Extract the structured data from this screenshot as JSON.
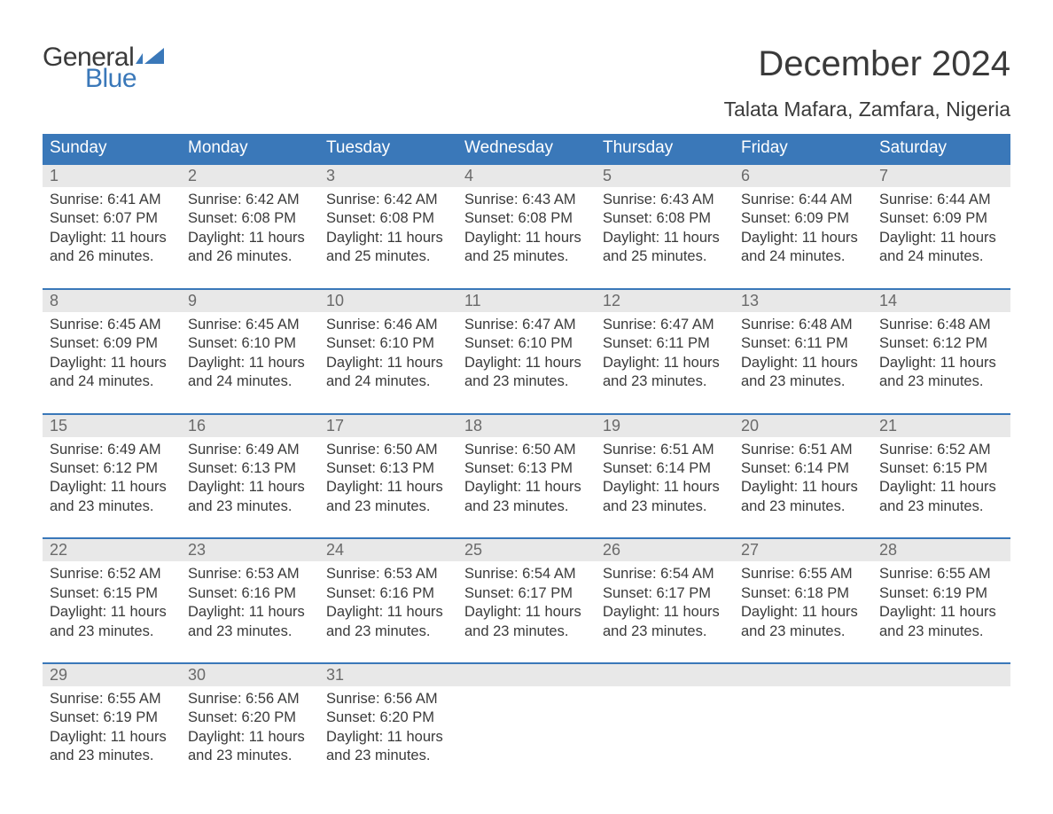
{
  "brand": {
    "word1": "General",
    "word2": "Blue",
    "accent_color": "#3a78b9"
  },
  "title": "December 2024",
  "subtitle": "Talata Mafara, Zamfara, Nigeria",
  "colors": {
    "header_bg": "#3a78b9",
    "header_text": "#ffffff",
    "daynum_bg": "#e8e8e8",
    "daynum_text": "#6a6a6a",
    "body_text": "#3a3a3a",
    "page_bg": "#ffffff",
    "week_border": "#3a78b9"
  },
  "typography": {
    "title_size_pt": 30,
    "subtitle_size_pt": 17,
    "header_size_pt": 14,
    "body_size_pt": 12
  },
  "day_headers": [
    "Sunday",
    "Monday",
    "Tuesday",
    "Wednesday",
    "Thursday",
    "Friday",
    "Saturday"
  ],
  "weeks": [
    [
      {
        "n": "1",
        "sunrise": "Sunrise: 6:41 AM",
        "sunset": "Sunset: 6:07 PM",
        "d1": "Daylight: 11 hours",
        "d2": "and 26 minutes."
      },
      {
        "n": "2",
        "sunrise": "Sunrise: 6:42 AM",
        "sunset": "Sunset: 6:08 PM",
        "d1": "Daylight: 11 hours",
        "d2": "and 26 minutes."
      },
      {
        "n": "3",
        "sunrise": "Sunrise: 6:42 AM",
        "sunset": "Sunset: 6:08 PM",
        "d1": "Daylight: 11 hours",
        "d2": "and 25 minutes."
      },
      {
        "n": "4",
        "sunrise": "Sunrise: 6:43 AM",
        "sunset": "Sunset: 6:08 PM",
        "d1": "Daylight: 11 hours",
        "d2": "and 25 minutes."
      },
      {
        "n": "5",
        "sunrise": "Sunrise: 6:43 AM",
        "sunset": "Sunset: 6:08 PM",
        "d1": "Daylight: 11 hours",
        "d2": "and 25 minutes."
      },
      {
        "n": "6",
        "sunrise": "Sunrise: 6:44 AM",
        "sunset": "Sunset: 6:09 PM",
        "d1": "Daylight: 11 hours",
        "d2": "and 24 minutes."
      },
      {
        "n": "7",
        "sunrise": "Sunrise: 6:44 AM",
        "sunset": "Sunset: 6:09 PM",
        "d1": "Daylight: 11 hours",
        "d2": "and 24 minutes."
      }
    ],
    [
      {
        "n": "8",
        "sunrise": "Sunrise: 6:45 AM",
        "sunset": "Sunset: 6:09 PM",
        "d1": "Daylight: 11 hours",
        "d2": "and 24 minutes."
      },
      {
        "n": "9",
        "sunrise": "Sunrise: 6:45 AM",
        "sunset": "Sunset: 6:10 PM",
        "d1": "Daylight: 11 hours",
        "d2": "and 24 minutes."
      },
      {
        "n": "10",
        "sunrise": "Sunrise: 6:46 AM",
        "sunset": "Sunset: 6:10 PM",
        "d1": "Daylight: 11 hours",
        "d2": "and 24 minutes."
      },
      {
        "n": "11",
        "sunrise": "Sunrise: 6:47 AM",
        "sunset": "Sunset: 6:10 PM",
        "d1": "Daylight: 11 hours",
        "d2": "and 23 minutes."
      },
      {
        "n": "12",
        "sunrise": "Sunrise: 6:47 AM",
        "sunset": "Sunset: 6:11 PM",
        "d1": "Daylight: 11 hours",
        "d2": "and 23 minutes."
      },
      {
        "n": "13",
        "sunrise": "Sunrise: 6:48 AM",
        "sunset": "Sunset: 6:11 PM",
        "d1": "Daylight: 11 hours",
        "d2": "and 23 minutes."
      },
      {
        "n": "14",
        "sunrise": "Sunrise: 6:48 AM",
        "sunset": "Sunset: 6:12 PM",
        "d1": "Daylight: 11 hours",
        "d2": "and 23 minutes."
      }
    ],
    [
      {
        "n": "15",
        "sunrise": "Sunrise: 6:49 AM",
        "sunset": "Sunset: 6:12 PM",
        "d1": "Daylight: 11 hours",
        "d2": "and 23 minutes."
      },
      {
        "n": "16",
        "sunrise": "Sunrise: 6:49 AM",
        "sunset": "Sunset: 6:13 PM",
        "d1": "Daylight: 11 hours",
        "d2": "and 23 minutes."
      },
      {
        "n": "17",
        "sunrise": "Sunrise: 6:50 AM",
        "sunset": "Sunset: 6:13 PM",
        "d1": "Daylight: 11 hours",
        "d2": "and 23 minutes."
      },
      {
        "n": "18",
        "sunrise": "Sunrise: 6:50 AM",
        "sunset": "Sunset: 6:13 PM",
        "d1": "Daylight: 11 hours",
        "d2": "and 23 minutes."
      },
      {
        "n": "19",
        "sunrise": "Sunrise: 6:51 AM",
        "sunset": "Sunset: 6:14 PM",
        "d1": "Daylight: 11 hours",
        "d2": "and 23 minutes."
      },
      {
        "n": "20",
        "sunrise": "Sunrise: 6:51 AM",
        "sunset": "Sunset: 6:14 PM",
        "d1": "Daylight: 11 hours",
        "d2": "and 23 minutes."
      },
      {
        "n": "21",
        "sunrise": "Sunrise: 6:52 AM",
        "sunset": "Sunset: 6:15 PM",
        "d1": "Daylight: 11 hours",
        "d2": "and 23 minutes."
      }
    ],
    [
      {
        "n": "22",
        "sunrise": "Sunrise: 6:52 AM",
        "sunset": "Sunset: 6:15 PM",
        "d1": "Daylight: 11 hours",
        "d2": "and 23 minutes."
      },
      {
        "n": "23",
        "sunrise": "Sunrise: 6:53 AM",
        "sunset": "Sunset: 6:16 PM",
        "d1": "Daylight: 11 hours",
        "d2": "and 23 minutes."
      },
      {
        "n": "24",
        "sunrise": "Sunrise: 6:53 AM",
        "sunset": "Sunset: 6:16 PM",
        "d1": "Daylight: 11 hours",
        "d2": "and 23 minutes."
      },
      {
        "n": "25",
        "sunrise": "Sunrise: 6:54 AM",
        "sunset": "Sunset: 6:17 PM",
        "d1": "Daylight: 11 hours",
        "d2": "and 23 minutes."
      },
      {
        "n": "26",
        "sunrise": "Sunrise: 6:54 AM",
        "sunset": "Sunset: 6:17 PM",
        "d1": "Daylight: 11 hours",
        "d2": "and 23 minutes."
      },
      {
        "n": "27",
        "sunrise": "Sunrise: 6:55 AM",
        "sunset": "Sunset: 6:18 PM",
        "d1": "Daylight: 11 hours",
        "d2": "and 23 minutes."
      },
      {
        "n": "28",
        "sunrise": "Sunrise: 6:55 AM",
        "sunset": "Sunset: 6:19 PM",
        "d1": "Daylight: 11 hours",
        "d2": "and 23 minutes."
      }
    ],
    [
      {
        "n": "29",
        "sunrise": "Sunrise: 6:55 AM",
        "sunset": "Sunset: 6:19 PM",
        "d1": "Daylight: 11 hours",
        "d2": "and 23 minutes."
      },
      {
        "n": "30",
        "sunrise": "Sunrise: 6:56 AM",
        "sunset": "Sunset: 6:20 PM",
        "d1": "Daylight: 11 hours",
        "d2": "and 23 minutes."
      },
      {
        "n": "31",
        "sunrise": "Sunrise: 6:56 AM",
        "sunset": "Sunset: 6:20 PM",
        "d1": "Daylight: 11 hours",
        "d2": "and 23 minutes."
      },
      {
        "empty": true
      },
      {
        "empty": true
      },
      {
        "empty": true
      },
      {
        "empty": true
      }
    ]
  ]
}
